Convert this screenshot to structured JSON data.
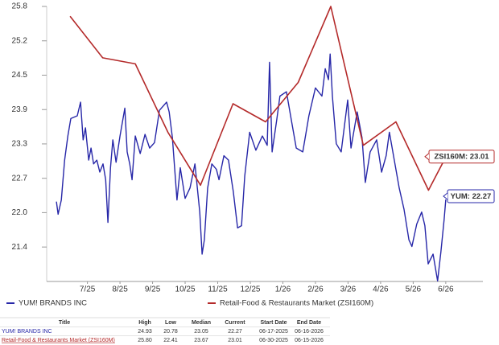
{
  "chart_data": {
    "type": "line",
    "legend": "bottom",
    "xlim": [
      6.25,
      19.64
    ],
    "xticks": [
      {
        "value": 7.5,
        "label": "7/25"
      },
      {
        "value": 8.5,
        "label": "8/25"
      },
      {
        "value": 9.5,
        "label": "9/25"
      },
      {
        "value": 10.5,
        "label": "10/25"
      },
      {
        "value": 11.5,
        "label": "11/25"
      },
      {
        "value": 12.5,
        "label": "12/25"
      },
      {
        "value": 13.5,
        "label": "1/26"
      },
      {
        "value": 14.5,
        "label": "2/26"
      },
      {
        "value": 15.5,
        "label": "3/26"
      },
      {
        "value": 16.5,
        "label": "4/26"
      },
      {
        "value": 17.5,
        "label": "5/26"
      },
      {
        "value": 18.5,
        "label": "6/26"
      }
    ],
    "ylim": [
      20.77,
      25.8
    ],
    "yticks": [
      21.4,
      {
        "value": 22.029,
        "label": "22.0"
      },
      {
        "value": 22.657,
        "label": "22.7"
      },
      {
        "value": 23.286,
        "label": "23.3"
      },
      {
        "value": 23.914,
        "label": "23.9"
      },
      {
        "value": 24.543,
        "label": "24.5"
      },
      {
        "value": 25.171,
        "label": "25.2"
      },
      25.8
    ],
    "series": [
      {
        "name": "YUM! BRANDS INC",
        "color": "#2727a8",
        "end_label": "YUM: 22.27",
        "x": [
          6.55,
          6.6,
          6.7,
          6.8,
          6.9,
          6.99,
          7.19,
          7.29,
          7.37,
          7.44,
          7.54,
          7.61,
          7.69,
          7.79,
          7.88,
          7.98,
          8.06,
          8.13,
          8.21,
          8.28,
          8.38,
          8.5,
          8.65,
          8.72,
          8.8,
          8.87,
          8.97,
          9.12,
          9.27,
          9.41,
          9.56,
          9.71,
          9.93,
          10.01,
          10.11,
          10.25,
          10.35,
          10.5,
          10.65,
          10.8,
          10.95,
          11.02,
          11.09,
          11.19,
          11.32,
          11.46,
          11.54,
          11.69,
          11.83,
          11.98,
          12.11,
          12.23,
          12.33,
          12.48,
          12.67,
          12.87,
          13.02,
          13.09,
          13.17,
          13.31,
          13.41,
          13.61,
          13.76,
          13.91,
          14.11,
          14.3,
          14.5,
          14.7,
          14.8,
          14.9,
          14.95,
          15.02,
          15.14,
          15.29,
          15.49,
          15.59,
          15.78,
          15.93,
          16.03,
          16.18,
          16.38,
          16.53,
          16.67,
          16.77,
          16.92,
          17.07,
          17.22,
          17.37,
          17.46,
          17.61,
          17.76,
          17.86,
          17.96,
          18.11,
          18.25,
          18.35,
          18.45,
          18.5
        ],
        "values": [
          22.23,
          22.0,
          22.26,
          22.99,
          23.43,
          23.75,
          23.8,
          24.05,
          23.36,
          23.58,
          22.99,
          23.21,
          22.92,
          22.99,
          22.77,
          22.92,
          22.63,
          21.85,
          22.85,
          23.36,
          22.95,
          23.43,
          23.94,
          23.14,
          22.92,
          22.63,
          23.43,
          23.11,
          23.46,
          23.21,
          23.31,
          23.9,
          24.05,
          23.87,
          23.4,
          22.26,
          22.85,
          22.29,
          22.48,
          22.92,
          22.04,
          21.27,
          21.53,
          22.48,
          22.92,
          22.82,
          22.63,
          23.07,
          22.99,
          22.41,
          21.75,
          21.79,
          22.7,
          23.5,
          23.17,
          23.43,
          23.26,
          24.78,
          23.14,
          23.72,
          24.16,
          24.24,
          23.72,
          23.21,
          23.14,
          23.8,
          24.31,
          24.16,
          24.66,
          24.46,
          24.93,
          24.16,
          23.29,
          23.14,
          24.09,
          23.21,
          23.87,
          23.4,
          22.58,
          23.14,
          23.36,
          22.77,
          23.07,
          23.5,
          22.99,
          22.48,
          22.09,
          21.53,
          21.41,
          21.82,
          22.04,
          21.79,
          21.09,
          21.27,
          20.78,
          21.31,
          21.9,
          22.27
        ]
      },
      {
        "name": "Retail-Food & Restaurants Market (ZSI160M)",
        "color": "#b42a2a",
        "end_label": "ZSI160M: 23.01",
        "x": [
          6.97,
          7.97,
          8.97,
          9.97,
          10.97,
          11.97,
          12.97,
          13.97,
          14.97,
          15.97,
          16.97,
          17.97,
          18.47
        ],
        "values": [
          25.62,
          24.86,
          24.75,
          23.5,
          22.53,
          24.02,
          23.69,
          24.41,
          25.8,
          23.26,
          23.69,
          22.44,
          23.01
        ]
      }
    ]
  },
  "table": {
    "columns": [
      "Title",
      "High",
      "Low",
      "Median",
      "Current",
      "Start Date",
      "End Date"
    ],
    "rows": [
      [
        "YUM! BRANDS INC",
        "24.93",
        "20.78",
        "23.05",
        "22.27",
        "06-17-2025",
        "06-16-2026"
      ],
      [
        "Retail-Food & Restaurants Market (ZSI160M)",
        "25.80",
        "22.41",
        "23.67",
        "23.01",
        "06-30-2025",
        "06-15-2026"
      ]
    ]
  }
}
